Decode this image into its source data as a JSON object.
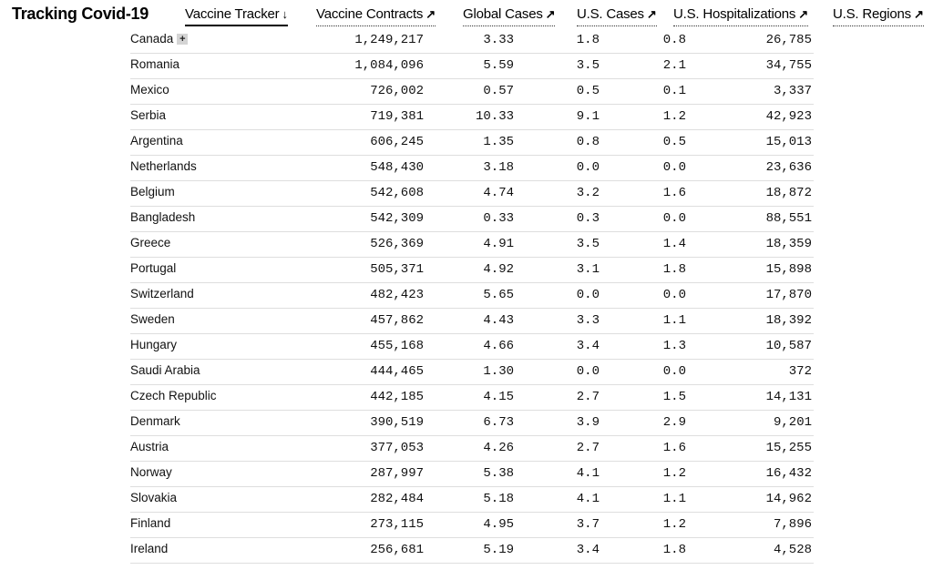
{
  "brand": "Tracking Covid-19",
  "nav": [
    {
      "label": "Vaccine Tracker",
      "icon": "arrow-down-icon",
      "glyph": "↓",
      "active": true
    },
    {
      "label": "Vaccine Contracts",
      "icon": "arrow-up-right-icon",
      "glyph": "↗",
      "active": false
    },
    {
      "label": "Global Cases",
      "icon": "arrow-up-right-icon",
      "glyph": "↗",
      "active": false
    },
    {
      "label": "U.S. Cases",
      "icon": "arrow-up-right-icon",
      "glyph": "↗",
      "active": false
    },
    {
      "label": "U.S. Hospitalizations",
      "icon": "arrow-up-right-icon",
      "glyph": "↗",
      "active": false
    },
    {
      "label": "U.S. Regions",
      "icon": "arrow-up-right-icon",
      "glyph": "↗",
      "active": false
    }
  ],
  "expand_label": "+",
  "rows": [
    {
      "country": "Canada",
      "doses": "1,249,217",
      "v2": "3.33",
      "v3": "1.8",
      "v4": "0.8",
      "v5": "26,785"
    },
    {
      "country": "Romania",
      "doses": "1,084,096",
      "v2": "5.59",
      "v3": "3.5",
      "v4": "2.1",
      "v5": "34,755"
    },
    {
      "country": "Mexico",
      "doses": "726,002",
      "v2": "0.57",
      "v3": "0.5",
      "v4": "0.1",
      "v5": "3,337"
    },
    {
      "country": "Serbia",
      "doses": "719,381",
      "v2": "10.33",
      "v3": "9.1",
      "v4": "1.2",
      "v5": "42,923"
    },
    {
      "country": "Argentina",
      "doses": "606,245",
      "v2": "1.35",
      "v3": "0.8",
      "v4": "0.5",
      "v5": "15,013"
    },
    {
      "country": "Netherlands",
      "doses": "548,430",
      "v2": "3.18",
      "v3": "0.0",
      "v4": "0.0",
      "v5": "23,636"
    },
    {
      "country": "Belgium",
      "doses": "542,608",
      "v2": "4.74",
      "v3": "3.2",
      "v4": "1.6",
      "v5": "18,872"
    },
    {
      "country": "Bangladesh",
      "doses": "542,309",
      "v2": "0.33",
      "v3": "0.3",
      "v4": "0.0",
      "v5": "88,551"
    },
    {
      "country": "Greece",
      "doses": "526,369",
      "v2": "4.91",
      "v3": "3.5",
      "v4": "1.4",
      "v5": "18,359"
    },
    {
      "country": "Portugal",
      "doses": "505,371",
      "v2": "4.92",
      "v3": "3.1",
      "v4": "1.8",
      "v5": "15,898"
    },
    {
      "country": "Switzerland",
      "doses": "482,423",
      "v2": "5.65",
      "v3": "0.0",
      "v4": "0.0",
      "v5": "17,870"
    },
    {
      "country": "Sweden",
      "doses": "457,862",
      "v2": "4.43",
      "v3": "3.3",
      "v4": "1.1",
      "v5": "18,392"
    },
    {
      "country": "Hungary",
      "doses": "455,168",
      "v2": "4.66",
      "v3": "3.4",
      "v4": "1.3",
      "v5": "10,587"
    },
    {
      "country": "Saudi Arabia",
      "doses": "444,465",
      "v2": "1.30",
      "v3": "0.0",
      "v4": "0.0",
      "v5": "372"
    },
    {
      "country": "Czech Republic",
      "doses": "442,185",
      "v2": "4.15",
      "v3": "2.7",
      "v4": "1.5",
      "v5": "14,131"
    },
    {
      "country": "Denmark",
      "doses": "390,519",
      "v2": "6.73",
      "v3": "3.9",
      "v4": "2.9",
      "v5": "9,201"
    },
    {
      "country": "Austria",
      "doses": "377,053",
      "v2": "4.26",
      "v3": "2.7",
      "v4": "1.6",
      "v5": "15,255"
    },
    {
      "country": "Norway",
      "doses": "287,997",
      "v2": "5.38",
      "v3": "4.1",
      "v4": "1.2",
      "v5": "16,432"
    },
    {
      "country": "Slovakia",
      "doses": "282,484",
      "v2": "5.18",
      "v3": "4.1",
      "v4": "1.1",
      "v5": "14,962"
    },
    {
      "country": "Finland",
      "doses": "273,115",
      "v2": "4.95",
      "v3": "3.7",
      "v4": "1.2",
      "v5": "7,896"
    },
    {
      "country": "Ireland",
      "doses": "256,681",
      "v2": "5.19",
      "v3": "3.4",
      "v4": "1.8",
      "v5": "4,528"
    }
  ]
}
